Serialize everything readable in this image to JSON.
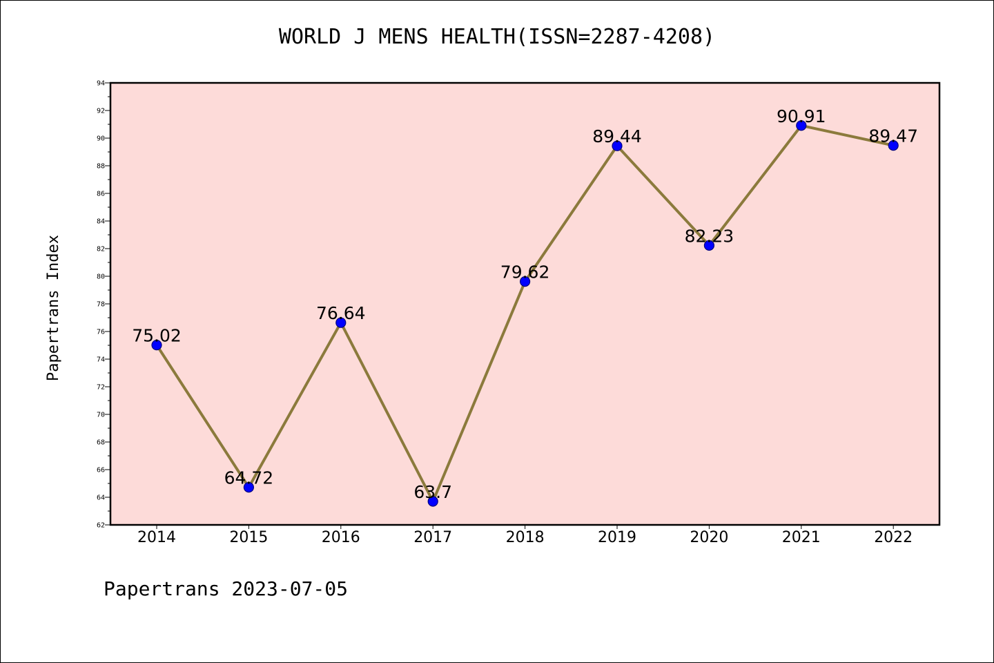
{
  "chart_data": {
    "type": "line",
    "title": "WORLD J MENS HEALTH(ISSN=2287-4208)",
    "ylabel": "Papertrans Index",
    "xlabel": "",
    "categories": [
      "2014",
      "2015",
      "2016",
      "2017",
      "2018",
      "2019",
      "2020",
      "2021",
      "2022"
    ],
    "series": [
      {
        "values": [
          75.02,
          64.72,
          76.64,
          63.7,
          79.62,
          89.44,
          82.23,
          90.91,
          89.47
        ],
        "labels": [
          "75.02",
          "64.72",
          "76.64",
          "63.7",
          "79.62",
          "89.44",
          "82.23",
          "90.91",
          "89.47"
        ]
      }
    ],
    "ylim": [
      62,
      94
    ],
    "yticks": [
      62,
      64,
      66,
      68,
      70,
      72,
      74,
      76,
      78,
      80,
      82,
      84,
      86,
      88,
      90,
      92,
      94
    ],
    "grid": false,
    "colors": {
      "plot_background": "#fddbd9",
      "line": "#8b7a3c",
      "marker_fill": "#0000ff",
      "marker_edge": "#000080"
    }
  },
  "footer": "Papertrans 2023-07-05"
}
